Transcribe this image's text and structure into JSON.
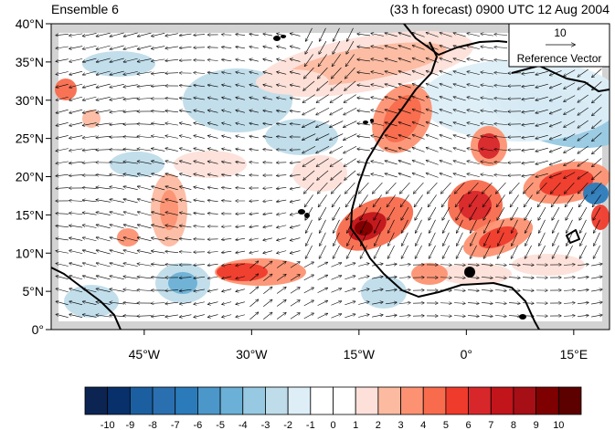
{
  "header": {
    "left_title": "Ensemble 6",
    "right_title": "(33 h forecast) 0900 UTC 12 Aug 2004"
  },
  "reference_vector": {
    "magnitude": "10",
    "label": "Reference Vector"
  },
  "map": {
    "lon_range": [
      -58,
      20
    ],
    "lat_range": [
      0,
      40
    ],
    "lat_ticks": [
      {
        "value": 0,
        "label": "0°"
      },
      {
        "value": 5,
        "label": "5°N"
      },
      {
        "value": 10,
        "label": "10°N"
      },
      {
        "value": 15,
        "label": "15°N"
      },
      {
        "value": 20,
        "label": "20°N"
      },
      {
        "value": 25,
        "label": "25°N"
      },
      {
        "value": 30,
        "label": "30°N"
      },
      {
        "value": 35,
        "label": "35°N"
      },
      {
        "value": 40,
        "label": "40°N"
      }
    ],
    "lon_ticks": [
      {
        "value": -45,
        "label": "45°W"
      },
      {
        "value": -30,
        "label": "30°W"
      },
      {
        "value": -15,
        "label": "15°W"
      },
      {
        "value": 0,
        "label": "0°"
      },
      {
        "value": 15,
        "label": "15°E"
      }
    ],
    "colors": {
      "land_outline": "#000000",
      "missing": "#d3d3d3"
    }
  },
  "colorbar": {
    "labels": [
      "-10",
      "-9",
      "-8",
      "-7",
      "-6",
      "-5",
      "-4",
      "-3",
      "-2",
      "-1",
      "0",
      "1",
      "2",
      "3",
      "4",
      "5",
      "6",
      "7",
      "8",
      "9",
      "10"
    ],
    "colors": [
      "#0b2452",
      "#08306b",
      "#1c5fa0",
      "#2a70b0",
      "#2b7bba",
      "#4b97c9",
      "#6bb0d6",
      "#97c9e2",
      "#bfdcea",
      "#ddeef7",
      "#ffffff",
      "#ffffff",
      "#fde0d9",
      "#fcbba1",
      "#fc9272",
      "#f86b4d",
      "#ef3b2c",
      "#d8272b",
      "#c1151b",
      "#a50f15",
      "#7f0000",
      "#5c0000"
    ]
  }
}
